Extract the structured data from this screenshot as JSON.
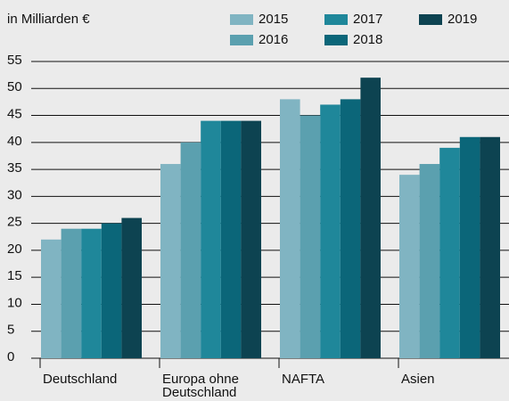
{
  "chart_data": {
    "type": "bar",
    "subtitle": "in Milliarden €",
    "categories": [
      "Deutschland",
      "Europa ohne Deutschland",
      "NAFTA",
      "Asien"
    ],
    "series": [
      {
        "name": "2015",
        "color": "#80b4c2",
        "values": [
          22,
          36,
          48,
          34
        ]
      },
      {
        "name": "2016",
        "color": "#5ba0af",
        "values": [
          24,
          40,
          45,
          36
        ]
      },
      {
        "name": "2017",
        "color": "#1f879a",
        "values": [
          24,
          44,
          47,
          39
        ]
      },
      {
        "name": "2018",
        "color": "#0b6679",
        "values": [
          25,
          44,
          48,
          41
        ]
      },
      {
        "name": "2019",
        "color": "#0d4351",
        "values": [
          26,
          44,
          52,
          41
        ]
      }
    ],
    "ylim": [
      0,
      55
    ],
    "yticks": [
      0,
      5,
      10,
      15,
      20,
      25,
      30,
      35,
      40,
      45,
      50,
      55
    ],
    "grid": true
  }
}
